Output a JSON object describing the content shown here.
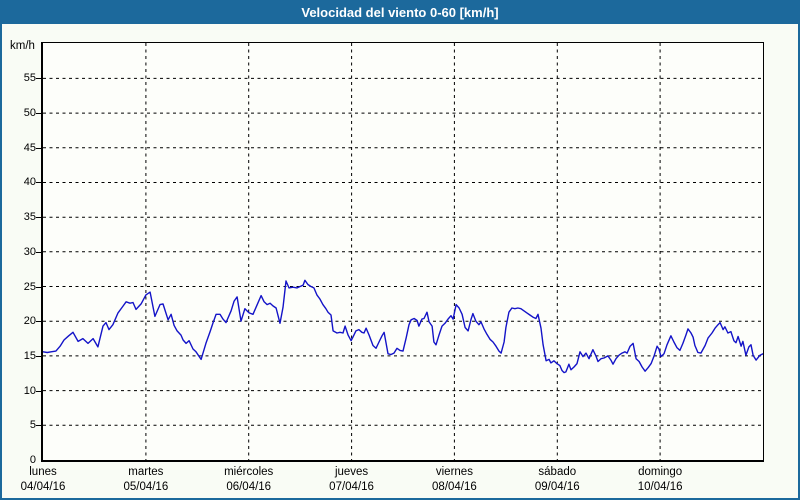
{
  "window": {
    "title": "Velocidad del viento 0-60 [km/h]"
  },
  "colors": {
    "frame": "#1c699c",
    "titlebar_bg": "#1c699c",
    "titlebar_text": "#ffffff",
    "page_bg": "#f9fcf5",
    "plot_bg": "#fdfefa",
    "grid": "#000000",
    "series_line": "#1414c8"
  },
  "chart_data": {
    "type": "line",
    "title": "Velocidad del viento 0-60 [km/h]",
    "grid": "dashed",
    "legend": "none",
    "y_axis": {
      "unit_label": "km/h",
      "min": 0,
      "max": 60.1,
      "tick_step": 5,
      "ticks": [
        0,
        5,
        10,
        15,
        20,
        25,
        30,
        35,
        40,
        45,
        50,
        55
      ]
    },
    "x_axis": {
      "span_hours": 168,
      "day_ticks": [
        {
          "hour": 0,
          "name": "lunes",
          "date": "04/04/16"
        },
        {
          "hour": 24,
          "name": "martes",
          "date": "05/04/16"
        },
        {
          "hour": 48,
          "name": "miércoles",
          "date": "06/04/16"
        },
        {
          "hour": 72,
          "name": "jueves",
          "date": "07/04/16"
        },
        {
          "hour": 96,
          "name": "viernes",
          "date": "08/04/16"
        },
        {
          "hour": 120,
          "name": "sábado",
          "date": "09/04/16"
        },
        {
          "hour": 144,
          "name": "domingo",
          "date": "10/04/16"
        }
      ]
    },
    "series": [
      {
        "name": "Velocidad del viento",
        "unit": "km/h",
        "color": "#1414c8",
        "points": [
          [
            0,
            15.6
          ],
          [
            1,
            15.5
          ],
          [
            1.9,
            15.6
          ],
          [
            3,
            15.7
          ],
          [
            4,
            16.4
          ],
          [
            4.9,
            17.3
          ],
          [
            6,
            17.9
          ],
          [
            7,
            18.4
          ],
          [
            8.2,
            17.1
          ],
          [
            9.3,
            17.5
          ],
          [
            10.5,
            16.8
          ],
          [
            11.7,
            17.5
          ],
          [
            12.8,
            16.3
          ],
          [
            14,
            19.3
          ],
          [
            14.7,
            19.8
          ],
          [
            15.4,
            18.8
          ],
          [
            16.3,
            19.5
          ],
          [
            17.5,
            21.2
          ],
          [
            18.7,
            22.2
          ],
          [
            19.4,
            22.8
          ],
          [
            20.3,
            22.6
          ],
          [
            21,
            22.7
          ],
          [
            21.7,
            21.7
          ],
          [
            22.9,
            22.5
          ],
          [
            24,
            23.8
          ],
          [
            25,
            24.2
          ],
          [
            26.1,
            20.7
          ],
          [
            27.3,
            22.4
          ],
          [
            28,
            22.5
          ],
          [
            29.2,
            20.2
          ],
          [
            29.9,
            21
          ],
          [
            30.6,
            19.4
          ],
          [
            31.3,
            18.6
          ],
          [
            32.2,
            18
          ],
          [
            32.7,
            17.3
          ],
          [
            33.4,
            16.8
          ],
          [
            34.1,
            17.2
          ],
          [
            35,
            16
          ],
          [
            35.7,
            15.6
          ],
          [
            36.9,
            14.5
          ],
          [
            38,
            16.8
          ],
          [
            39,
            18.5
          ],
          [
            39.7,
            19.8
          ],
          [
            40.4,
            21
          ],
          [
            41.3,
            21
          ],
          [
            42,
            20.3
          ],
          [
            42.7,
            19.8
          ],
          [
            43.9,
            21.5
          ],
          [
            44.6,
            22.9
          ],
          [
            45.3,
            23.5
          ],
          [
            46.2,
            20
          ],
          [
            47.1,
            21.8
          ],
          [
            48.1,
            21.2
          ],
          [
            49,
            21
          ],
          [
            49.9,
            22.3
          ],
          [
            50.9,
            23.7
          ],
          [
            51.6,
            22.8
          ],
          [
            52.3,
            22.4
          ],
          [
            53,
            22.6
          ],
          [
            53.7,
            22.2
          ],
          [
            54.4,
            21.9
          ],
          [
            55.3,
            19.7
          ],
          [
            56,
            22
          ],
          [
            56.7,
            25.8
          ],
          [
            57.4,
            24.8
          ],
          [
            58.3,
            24.9
          ],
          [
            59.3,
            24.8
          ],
          [
            60,
            25
          ],
          [
            60.7,
            25.2
          ],
          [
            61.1,
            25.9
          ],
          [
            61.8,
            25.3
          ],
          [
            62.5,
            25
          ],
          [
            63.2,
            24.8
          ],
          [
            63.9,
            23.8
          ],
          [
            64.6,
            23.2
          ],
          [
            65.3,
            22.4
          ],
          [
            66,
            21.8
          ],
          [
            66.5,
            21.3
          ],
          [
            67.2,
            20.9
          ],
          [
            67.7,
            18.6
          ],
          [
            68.6,
            18.3
          ],
          [
            69.3,
            18.4
          ],
          [
            70,
            18.3
          ],
          [
            70.5,
            19.3
          ],
          [
            71.2,
            18
          ],
          [
            71.9,
            17.2
          ],
          [
            72.3,
            17.7
          ],
          [
            73,
            18.6
          ],
          [
            73.7,
            18.8
          ],
          [
            74.4,
            18.4
          ],
          [
            74.9,
            18.3
          ],
          [
            75.4,
            19
          ],
          [
            76.1,
            18
          ],
          [
            77,
            16.5
          ],
          [
            77.7,
            16.1
          ],
          [
            78.4,
            17
          ],
          [
            79.1,
            17.9
          ],
          [
            79.6,
            18.4
          ],
          [
            80.5,
            15.3
          ],
          [
            81.2,
            15.2
          ],
          [
            81.9,
            15.4
          ],
          [
            82.6,
            16.1
          ],
          [
            83.3,
            15.8
          ],
          [
            84,
            15.7
          ],
          [
            84.7,
            17.5
          ],
          [
            85.4,
            19.5
          ],
          [
            85.9,
            20.2
          ],
          [
            86.6,
            20.4
          ],
          [
            87.3,
            20.1
          ],
          [
            87.7,
            19.3
          ],
          [
            88.4,
            20.3
          ],
          [
            88.9,
            20.4
          ],
          [
            89.6,
            21.3
          ],
          [
            90.1,
            19.9
          ],
          [
            90.8,
            19.3
          ],
          [
            91.2,
            17
          ],
          [
            91.7,
            16.6
          ],
          [
            92.4,
            18
          ],
          [
            93.1,
            19.3
          ],
          [
            93.8,
            19.7
          ],
          [
            94.5,
            20.3
          ],
          [
            95.2,
            20.8
          ],
          [
            95.7,
            20.3
          ],
          [
            96.4,
            22.4
          ],
          [
            97.1,
            21.9
          ],
          [
            97.8,
            21
          ],
          [
            98.5,
            19.1
          ],
          [
            99.2,
            18.6
          ],
          [
            99.9,
            20.3
          ],
          [
            100.3,
            21.1
          ],
          [
            101,
            20
          ],
          [
            101.7,
            19.5
          ],
          [
            102.2,
            19.9
          ],
          [
            102.9,
            18.9
          ],
          [
            103.6,
            18.1
          ],
          [
            104.3,
            17.4
          ],
          [
            105,
            17
          ],
          [
            105.7,
            16.4
          ],
          [
            106.4,
            15.7
          ],
          [
            106.9,
            15.4
          ],
          [
            107.6,
            17
          ],
          [
            108,
            19.1
          ],
          [
            108.7,
            21.3
          ],
          [
            109.4,
            21.9
          ],
          [
            110.1,
            21.8
          ],
          [
            110.8,
            21.9
          ],
          [
            111.5,
            21.8
          ],
          [
            112.2,
            21.5
          ],
          [
            112.9,
            21.2
          ],
          [
            113.6,
            20.9
          ],
          [
            114.3,
            20.6
          ],
          [
            115,
            20.4
          ],
          [
            115.5,
            21
          ],
          [
            116.2,
            19
          ],
          [
            116.7,
            16.6
          ],
          [
            117.4,
            14.3
          ],
          [
            118.1,
            14.5
          ],
          [
            118.5,
            14
          ],
          [
            119.2,
            14.3
          ],
          [
            119.9,
            13.9
          ],
          [
            120.6,
            13.6
          ],
          [
            121.1,
            12.9
          ],
          [
            121.6,
            12.6
          ],
          [
            122,
            12.7
          ],
          [
            122.7,
            13.8
          ],
          [
            123.2,
            13
          ],
          [
            123.9,
            13.4
          ],
          [
            124.6,
            13.9
          ],
          [
            125.3,
            15.6
          ],
          [
            126,
            14.9
          ],
          [
            126.7,
            15.4
          ],
          [
            127.4,
            14.6
          ],
          [
            128.3,
            15.9
          ],
          [
            129,
            15
          ],
          [
            129.5,
            14.2
          ],
          [
            130.2,
            14.6
          ],
          [
            130.9,
            14.7
          ],
          [
            131.8,
            15
          ],
          [
            132.5,
            14.4
          ],
          [
            133,
            13.8
          ],
          [
            133.7,
            14.6
          ],
          [
            134.4,
            15.1
          ],
          [
            135.1,
            15.4
          ],
          [
            135.8,
            15.6
          ],
          [
            136.3,
            15.4
          ],
          [
            137,
            16.4
          ],
          [
            137.7,
            16.8
          ],
          [
            138.4,
            14.6
          ],
          [
            139.1,
            14.2
          ],
          [
            139.8,
            13.4
          ],
          [
            140.5,
            12.8
          ],
          [
            141.2,
            13.3
          ],
          [
            141.9,
            13.9
          ],
          [
            142.6,
            15
          ],
          [
            143.3,
            16.4
          ],
          [
            143.7,
            16
          ],
          [
            144.2,
            14.9
          ],
          [
            144.9,
            15.3
          ],
          [
            145.6,
            16.6
          ],
          [
            146.5,
            17.9
          ],
          [
            147.2,
            17
          ],
          [
            147.9,
            16.2
          ],
          [
            148.6,
            15.8
          ],
          [
            149.3,
            16.8
          ],
          [
            150,
            18
          ],
          [
            150.5,
            18.9
          ],
          [
            151.2,
            18.3
          ],
          [
            151.7,
            17.7
          ],
          [
            152.1,
            16.5
          ],
          [
            152.8,
            15.5
          ],
          [
            153.5,
            15.4
          ],
          [
            154.5,
            16.5
          ],
          [
            155.2,
            17.6
          ],
          [
            156.1,
            18.3
          ],
          [
            156.8,
            19
          ],
          [
            157.5,
            19.5
          ],
          [
            158,
            19.8
          ],
          [
            158.7,
            18.8
          ],
          [
            159.1,
            19.2
          ],
          [
            159.8,
            18.3
          ],
          [
            160.5,
            18.5
          ],
          [
            161.2,
            17.2
          ],
          [
            161.7,
            16.9
          ],
          [
            162.2,
            17.8
          ],
          [
            162.9,
            16.4
          ],
          [
            163.3,
            17.1
          ],
          [
            164,
            15.1
          ],
          [
            164.7,
            16.3
          ],
          [
            165.2,
            16.6
          ],
          [
            165.7,
            15.1
          ],
          [
            166.4,
            14.4
          ],
          [
            167.3,
            15.1
          ],
          [
            168,
            15.3
          ]
        ]
      }
    ]
  }
}
